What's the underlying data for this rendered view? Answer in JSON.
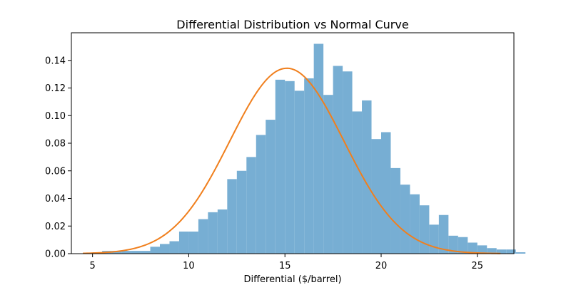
{
  "chart_data": {
    "type": "bar",
    "title": "Differential Distribution vs Normal Curve",
    "xlabel": "Differential ($/barrel)",
    "ylabel": "",
    "xlim": [
      3.9,
      26.9
    ],
    "ylim": [
      0,
      0.16
    ],
    "xticks": [
      5,
      10,
      15,
      20,
      25
    ],
    "xtick_labels": [
      "5",
      "10",
      "15",
      "20",
      "25"
    ],
    "yticks": [
      0.0,
      0.02,
      0.04,
      0.06,
      0.08,
      0.1,
      0.12,
      0.14
    ],
    "ytick_labels": [
      "0.00",
      "0.02",
      "0.04",
      "0.06",
      "0.08",
      "0.10",
      "0.12",
      "0.14"
    ],
    "grid": false,
    "histogram": {
      "name": "",
      "color": "#77aed3",
      "bin_start": 4.5,
      "bin_width": 0.5,
      "densities": [
        0.0005,
        0.001,
        0.002,
        0.002,
        0.002,
        0.002,
        0.002,
        0.005,
        0.007,
        0.009,
        0.016,
        0.016,
        0.025,
        0.03,
        0.032,
        0.054,
        0.06,
        0.07,
        0.086,
        0.097,
        0.126,
        0.125,
        0.118,
        0.127,
        0.152,
        0.115,
        0.136,
        0.132,
        0.103,
        0.111,
        0.083,
        0.088,
        0.062,
        0.05,
        0.043,
        0.035,
        0.021,
        0.028,
        0.013,
        0.012,
        0.008,
        0.006,
        0.004,
        0.003,
        0.003,
        0.001
      ]
    },
    "series": [
      {
        "name": "",
        "type": "line",
        "color": "#f07f1d",
        "mean": 15.1,
        "std": 2.97,
        "x_range": [
          4.5,
          26.2
        ]
      }
    ]
  }
}
